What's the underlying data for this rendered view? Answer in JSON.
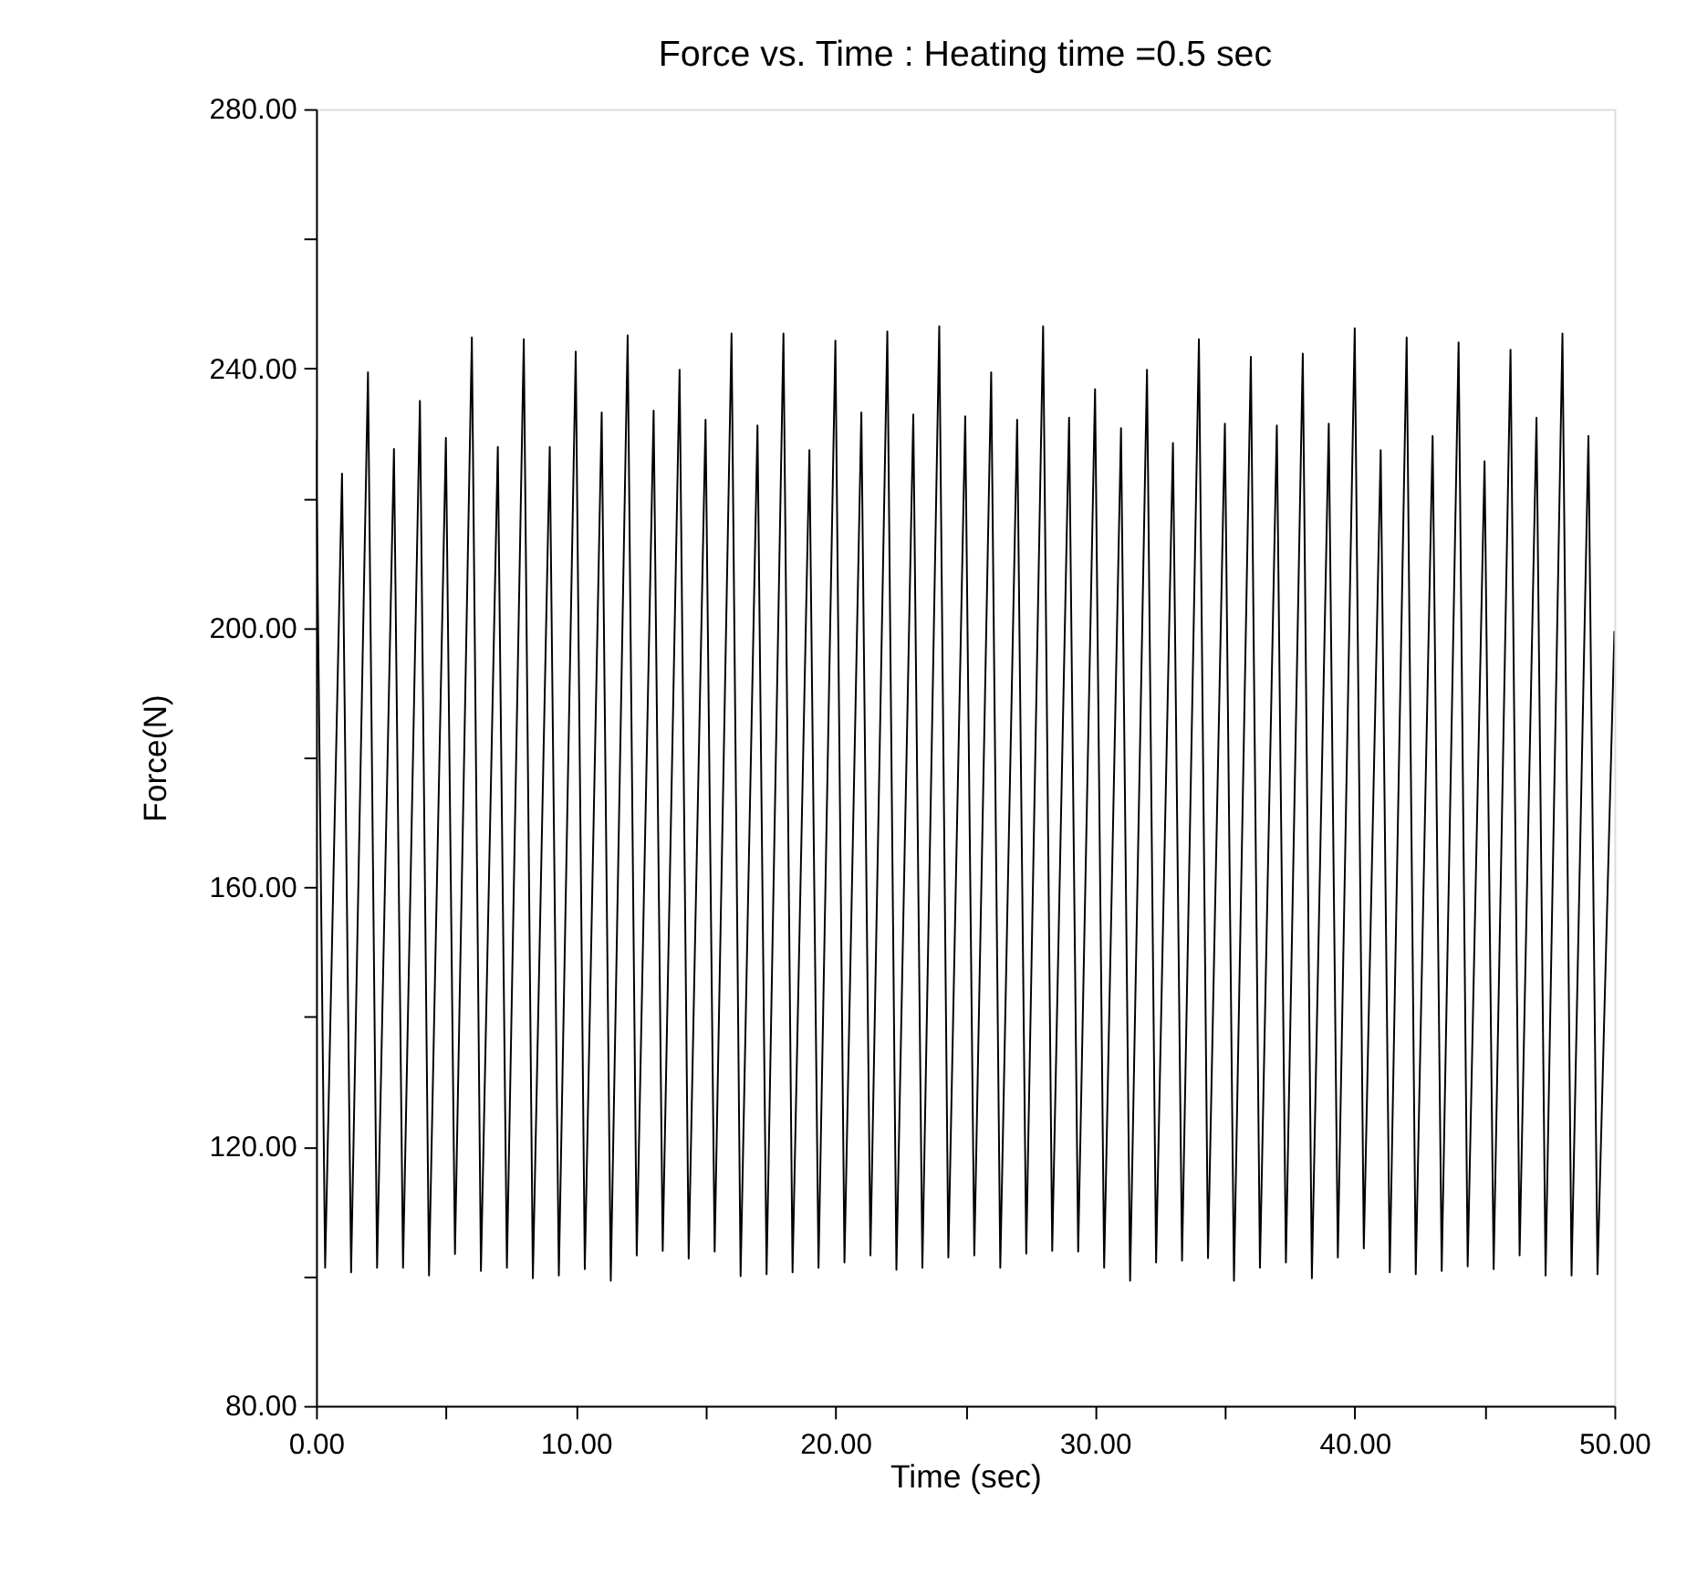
{
  "chart_data": {
    "type": "line",
    "title": "Force  vs. Time : Heating time =0.5 sec",
    "xlabel": "Time (sec)",
    "ylabel": "Force(N)",
    "x": [
      0,
      0.35,
      1,
      1.35,
      2,
      2.35,
      3,
      3.35,
      4,
      4.35,
      5,
      5.35,
      6,
      6.35,
      7,
      7.35,
      8,
      8.35,
      9,
      9.35,
      10,
      10.35,
      11,
      11.35,
      12,
      12.35,
      13,
      13.35,
      14,
      14.35,
      15,
      15.35,
      16,
      16.35,
      17,
      17.35,
      18,
      18.35,
      19,
      19.35,
      20,
      20.35,
      21,
      21.35,
      22,
      22.35,
      23,
      23.35,
      24,
      24.35,
      25,
      25.35,
      26,
      26.35,
      27,
      27.35,
      28,
      28.35,
      29,
      29.35,
      30,
      30.35,
      31,
      31.35,
      32,
      32.35,
      33,
      33.35,
      34,
      34.35,
      35,
      35.35,
      36,
      36.35,
      37,
      37.35,
      38,
      38.35,
      39,
      39.35,
      40,
      40.35,
      41,
      41.35,
      42,
      42.35,
      43,
      43.35,
      44,
      44.35,
      45,
      45.35,
      46,
      46.35,
      47,
      47.35,
      48,
      48.35,
      49,
      49.35,
      50
    ],
    "series": [
      {
        "color": "#000000",
        "values": [
          229,
          101.3,
          223.8,
          100.6,
          239.4,
          101.3,
          227.6,
          101.3,
          235.0,
          100.1,
          229.3,
          103.4,
          244.8,
          100.8,
          227.9,
          101.3,
          244.5,
          99.7,
          227.9,
          100.1,
          242.6,
          101.1,
          233.2,
          99.3,
          245.1,
          103.2,
          233.5,
          103.9,
          239.8,
          102.7,
          232.1,
          103.8,
          245.4,
          100.0,
          231.2,
          100.3,
          245.4,
          100.6,
          227.4,
          101.3,
          244.3,
          102.1,
          233.2,
          103.2,
          245.7,
          101.0,
          232.9,
          101.3,
          246.5,
          102.9,
          232.6,
          103.2,
          239.4,
          101.3,
          232.1,
          103.5,
          246.5,
          103.9,
          232.4,
          103.8,
          236.8,
          101.3,
          230.8,
          99.3,
          239.8,
          102.1,
          228.5,
          102.4,
          244.5,
          102.8,
          231.5,
          99.3,
          241.8,
          101.3,
          231.2,
          102.1,
          242.3,
          99.7,
          231.5,
          102.9,
          246.2,
          104.3,
          227.4,
          100.6,
          244.8,
          100.3,
          229.6,
          100.8,
          244.0,
          101.5,
          225.7,
          101.1,
          242.9,
          103.2,
          232.4,
          100.1,
          245.4,
          100.1,
          229.6,
          100.3,
          199.5
        ]
      }
    ],
    "xlim": [
      0,
      50
    ],
    "ylim": [
      80,
      280
    ],
    "xticks": [
      {
        "value": 0,
        "label": "0.00"
      },
      {
        "value": 5,
        "label": null
      },
      {
        "value": 10,
        "label": "10.00"
      },
      {
        "value": 15,
        "label": null
      },
      {
        "value": 20,
        "label": "20.00"
      },
      {
        "value": 25,
        "label": null
      },
      {
        "value": 30,
        "label": "30.00"
      },
      {
        "value": 35,
        "label": null
      },
      {
        "value": 40,
        "label": "40.00"
      },
      {
        "value": 45,
        "label": null
      },
      {
        "value": 50,
        "label": "50.00"
      }
    ],
    "yticks": [
      {
        "value": 80,
        "label": "80.00"
      },
      {
        "value": 100,
        "label": null
      },
      {
        "value": 120,
        "label": "120.00"
      },
      {
        "value": 140,
        "label": null
      },
      {
        "value": 160,
        "label": "160.00"
      },
      {
        "value": 180,
        "label": null
      },
      {
        "value": 200,
        "label": "200.00"
      },
      {
        "value": 220,
        "label": null
      },
      {
        "value": 240,
        "label": "240.00"
      },
      {
        "value": 260,
        "label": null
      },
      {
        "value": 280,
        "label": "280.00"
      }
    ],
    "grid": false,
    "marker": "none",
    "line_style": "solid"
  }
}
